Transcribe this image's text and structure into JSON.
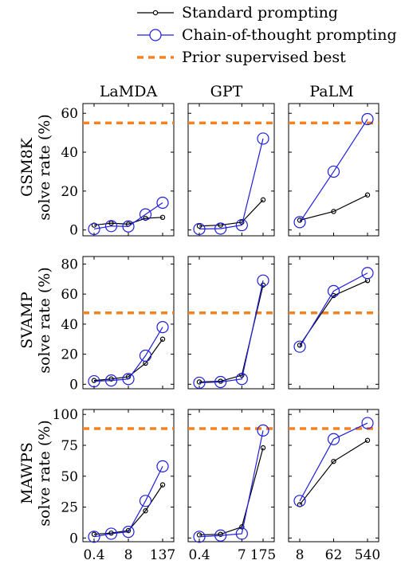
{
  "legend": {
    "standard": "Standard prompting",
    "cot": "Chain-of-thought prompting",
    "prior": "Prior supervised best"
  },
  "colors": {
    "standard": "#000000",
    "cot": "#1f1fdd",
    "prior": "#f58220"
  },
  "columns": [
    "LaMDA",
    "GPT",
    "PaLM"
  ],
  "rows": [
    {
      "name": "GSM8K",
      "ylabel": "solve rate (%)"
    },
    {
      "name": "SVAMP",
      "ylabel": "solve rate (%)"
    },
    {
      "name": "MAWPS",
      "ylabel": "solve rate (%)"
    }
  ],
  "chart_data": {
    "type": "line",
    "legend_placement": "top",
    "grid": false,
    "x_ticks": {
      "LaMDA": [
        "0.4",
        "8",
        "137"
      ],
      "GPT": [
        "0.4",
        "7",
        "175"
      ],
      "PaLM": [
        "8",
        "62",
        "540"
      ]
    },
    "x_tick_index": {
      "LaMDA": [
        0,
        2,
        4
      ],
      "GPT": [
        0,
        2,
        3
      ],
      "PaLM": [
        0,
        1,
        2
      ]
    },
    "y_ticks": {
      "GSM8K": [
        "0",
        "20",
        "40",
        "60"
      ],
      "SVAMP": [
        "0",
        "20",
        "40",
        "60",
        "80"
      ],
      "MAWPS": [
        "0",
        "25",
        "50",
        "75",
        "100"
      ]
    },
    "ylim": {
      "GSM8K": [
        -3,
        65
      ],
      "SVAMP": [
        -3,
        85
      ],
      "MAWPS": [
        -3,
        104
      ]
    },
    "prior_best": {
      "GSM8K": 55,
      "SVAMP": 47.5,
      "MAWPS": 88.5
    },
    "panels": [
      {
        "row": "GSM8K",
        "col": "LaMDA",
        "standard": [
          2.5,
          3.5,
          3.0,
          6.0,
          6.5
        ],
        "cot": [
          0.5,
          2.0,
          1.8,
          8.0,
          14.0
        ]
      },
      {
        "row": "GSM8K",
        "col": "GPT",
        "standard": [
          2.0,
          2.5,
          4.0,
          15.5
        ],
        "cot": [
          0.5,
          0.7,
          2.5,
          47.0
        ]
      },
      {
        "row": "GSM8K",
        "col": "PaLM",
        "standard": [
          5.0,
          9.5,
          18.0
        ],
        "cot": [
          4.0,
          30.0,
          57.0
        ]
      },
      {
        "row": "SVAMP",
        "col": "LaMDA",
        "standard": [
          2.5,
          3.5,
          5.0,
          14.0,
          30.0
        ],
        "cot": [
          2.0,
          2.5,
          3.5,
          19.0,
          38.0
        ]
      },
      {
        "row": "SVAMP",
        "col": "GPT",
        "standard": [
          1.5,
          2.0,
          6.0,
          66.0
        ],
        "cot": [
          1.0,
          1.5,
          3.5,
          69.0
        ]
      },
      {
        "row": "SVAMP",
        "col": "PaLM",
        "standard": [
          26.0,
          59.0,
          69.0
        ],
        "cot": [
          25.0,
          62.0,
          74.0
        ]
      },
      {
        "row": "MAWPS",
        "col": "LaMDA",
        "standard": [
          3.0,
          4.0,
          6.0,
          22.0,
          43.0
        ],
        "cot": [
          1.0,
          3.5,
          5.0,
          30.0,
          58.0
        ]
      },
      {
        "row": "MAWPS",
        "col": "GPT",
        "standard": [
          2.5,
          3.0,
          9.0,
          73.0
        ],
        "cot": [
          1.0,
          2.0,
          3.5,
          87.0
        ]
      },
      {
        "row": "MAWPS",
        "col": "PaLM",
        "standard": [
          27.0,
          62.0,
          79.0
        ],
        "cot": [
          30.0,
          80.0,
          93.0
        ]
      }
    ]
  }
}
